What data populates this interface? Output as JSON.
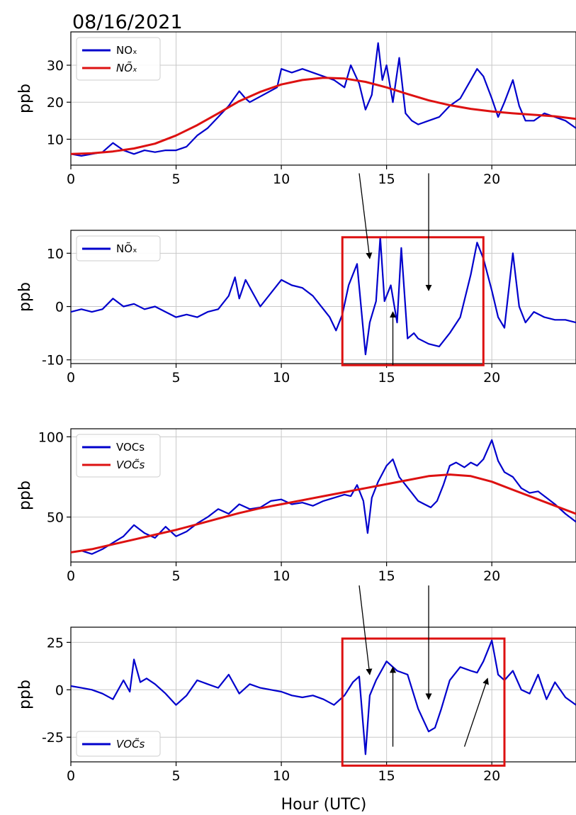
{
  "date_label": "08/16/2021",
  "xlabel": "Hour (UTC)",
  "colors": {
    "measured": "#0000cc",
    "smooth": "#dd1111",
    "box": "#dd1111",
    "arrow": "#000000"
  },
  "chart_data": [
    {
      "type": "line",
      "ylabel": "ppb",
      "xlim": [
        0,
        24
      ],
      "ylim": [
        3,
        39
      ],
      "xticks": [
        0,
        5,
        10,
        15,
        20
      ],
      "yticks": [
        10,
        20,
        30
      ],
      "legend": {
        "placement": "top-left",
        "entries": [
          "NOₓ",
          "NÕₓ"
        ]
      },
      "series": [
        {
          "name": "NOₓ",
          "style": "measured",
          "x": [
            0,
            0.5,
            1,
            1.5,
            2,
            2.5,
            3,
            3.5,
            4,
            4.5,
            5,
            5.5,
            6,
            6.5,
            7,
            7.5,
            8,
            8.3,
            8.5,
            9.8,
            10,
            10.5,
            11,
            11.5,
            12,
            12.5,
            13,
            13.3,
            13.7,
            14,
            14.3,
            14.6,
            14.8,
            15,
            15.3,
            15.6,
            15.9,
            16.2,
            16.5,
            17,
            17.5,
            18,
            18.5,
            19,
            19.3,
            19.6,
            20,
            20.3,
            20.6,
            21,
            21.3,
            21.6,
            22,
            22.5,
            23,
            23.5,
            24
          ],
          "y": [
            6,
            5.5,
            6,
            6.5,
            9,
            7,
            6,
            7,
            6.5,
            7,
            7,
            8,
            11,
            13,
            16,
            19,
            23,
            21,
            20,
            24,
            29,
            28,
            29,
            28,
            27,
            26,
            24,
            30,
            25,
            18,
            22,
            36,
            26,
            30,
            20,
            32,
            17,
            15,
            14,
            15,
            16,
            19,
            21,
            26,
            29,
            27,
            21,
            16,
            20,
            26,
            19,
            15,
            15,
            17,
            16,
            15,
            13
          ]
        },
        {
          "name": "NÕₓ",
          "style": "smooth",
          "x": [
            0,
            1,
            2,
            3,
            4,
            5,
            6,
            7,
            8,
            9,
            10,
            11,
            12,
            13,
            14,
            15,
            16,
            17,
            18,
            19,
            20,
            21,
            22,
            23,
            24
          ],
          "y": [
            6,
            6.2,
            6.7,
            7.5,
            8.8,
            11,
            13.8,
            17,
            20.3,
            22.8,
            24.8,
            26,
            26.6,
            26.4,
            25.5,
            24,
            22.2,
            20.5,
            19.2,
            18.2,
            17.5,
            17,
            16.6,
            16.2,
            15.5
          ]
        }
      ]
    },
    {
      "type": "line",
      "ylabel": "ppb",
      "xlim": [
        0,
        24
      ],
      "ylim": [
        -10.7,
        14.3
      ],
      "xticks": [
        0,
        5,
        10,
        15,
        20
      ],
      "yticks": [
        -10,
        0,
        10
      ],
      "legend": {
        "placement": "top-left",
        "entries": [
          "NÕₓ"
        ]
      },
      "series": [
        {
          "name": "NÕₓ",
          "style": "measured",
          "x": [
            0,
            0.5,
            1,
            1.5,
            2,
            2.5,
            3,
            3.5,
            4,
            4.5,
            5,
            5.5,
            6,
            6.5,
            7,
            7.5,
            7.8,
            8,
            8.3,
            9,
            10,
            10.5,
            11,
            11.5,
            12,
            12.3,
            12.6,
            12.9,
            13.2,
            13.6,
            14,
            14.2,
            14.5,
            14.7,
            14.9,
            15.2,
            15.5,
            15.7,
            16,
            16.3,
            16.5,
            17,
            17.5,
            18,
            18.5,
            19,
            19.3,
            19.6,
            20,
            20.3,
            20.6,
            21,
            21.3,
            21.6,
            22,
            22.5,
            23,
            23.5,
            24
          ],
          "y": [
            -1,
            -0.5,
            -1,
            -0.5,
            1.5,
            0,
            0.5,
            -0.5,
            0,
            -1,
            -2,
            -1.5,
            -2,
            -1,
            -0.5,
            2,
            5.5,
            1.5,
            5,
            0,
            5,
            4,
            3.5,
            2,
            -0.5,
            -2,
            -4.5,
            -1.5,
            4,
            8,
            -9,
            -3,
            1,
            13,
            1,
            4,
            -3,
            11,
            -6,
            -5,
            -6,
            -7,
            -7.5,
            -5,
            -2,
            6,
            12,
            9,
            3,
            -2,
            -4,
            10,
            0,
            -3,
            -1,
            -2,
            -2.5,
            -2.5,
            -3
          ]
        }
      ]
    },
    {
      "type": "line",
      "ylabel": "ppb",
      "xlim": [
        0,
        24
      ],
      "ylim": [
        22,
        105
      ],
      "xticks": [
        0,
        5,
        10,
        15,
        20
      ],
      "yticks": [
        50,
        100
      ],
      "legend": {
        "placement": "top-left",
        "entries": [
          "VOCs",
          "VOC̃s"
        ]
      },
      "series": [
        {
          "name": "VOCs",
          "style": "measured",
          "x": [
            0,
            0.5,
            1,
            1.5,
            2,
            2.5,
            3,
            3.5,
            4,
            4.5,
            5,
            5.5,
            6,
            6.5,
            7,
            7.5,
            8,
            8.5,
            9,
            9.5,
            10,
            10.5,
            11,
            11.5,
            12,
            12.5,
            13,
            13.3,
            13.6,
            13.9,
            14.1,
            14.3,
            14.6,
            15,
            15.3,
            15.6,
            15.9,
            16.2,
            16.5,
            16.8,
            17.1,
            17.4,
            17.7,
            18,
            18.3,
            18.7,
            19,
            19.3,
            19.6,
            20,
            20.3,
            20.6,
            21,
            21.4,
            21.8,
            22.2,
            22.6,
            23,
            23.5,
            24
          ],
          "y": [
            28,
            29,
            27,
            30,
            34,
            38,
            45,
            40,
            37,
            44,
            38,
            41,
            46,
            50,
            55,
            52,
            58,
            55,
            56,
            60,
            61,
            58,
            59,
            57,
            60,
            62,
            64,
            63,
            70,
            60,
            40,
            62,
            72,
            82,
            86,
            75,
            70,
            65,
            60,
            58,
            56,
            60,
            70,
            82,
            84,
            81,
            84,
            82,
            86,
            98,
            85,
            78,
            75,
            68,
            65,
            66,
            62,
            58,
            52,
            47
          ]
        },
        {
          "name": "VOC̃s",
          "style": "smooth",
          "x": [
            0,
            1,
            2,
            3,
            4,
            5,
            6,
            7,
            8,
            9,
            10,
            11,
            12,
            13,
            14,
            15,
            16,
            17,
            18,
            19,
            20,
            21,
            22,
            23,
            24
          ],
          "y": [
            28,
            30,
            33,
            36,
            39,
            42,
            45.5,
            49,
            52.5,
            55.5,
            58,
            60.5,
            63,
            65.5,
            68,
            70.5,
            73,
            75.5,
            76.5,
            75.5,
            72,
            67,
            62,
            57,
            52
          ]
        }
      ]
    },
    {
      "type": "line",
      "ylabel": "ppb",
      "xlim": [
        0,
        24
      ],
      "ylim": [
        -38,
        33
      ],
      "xticks": [
        0,
        5,
        10,
        15,
        20
      ],
      "yticks": [
        -25,
        0,
        25
      ],
      "legend": {
        "placement": "bottom-left",
        "entries": [
          "VOC̃s"
        ]
      },
      "series": [
        {
          "name": "VOC̃s",
          "style": "measured",
          "x": [
            0,
            0.5,
            1,
            1.5,
            2,
            2.5,
            2.8,
            3,
            3.3,
            3.6,
            4,
            4.5,
            5,
            5.5,
            6,
            6.5,
            7,
            7.5,
            8,
            8.5,
            9,
            9.5,
            10,
            10.5,
            11,
            11.5,
            12,
            12.5,
            13,
            13.4,
            13.7,
            14,
            14.2,
            14.5,
            15,
            15.5,
            16,
            16.5,
            17,
            17.3,
            17.6,
            18,
            18.5,
            19,
            19.3,
            19.6,
            20,
            20.3,
            20.6,
            21,
            21.4,
            21.8,
            22.2,
            22.6,
            23,
            23.5,
            24
          ],
          "y": [
            2,
            1,
            0,
            -2,
            -5,
            5,
            -1,
            16,
            4,
            6,
            3,
            -2,
            -8,
            -3,
            5,
            3,
            1,
            8,
            -2,
            3,
            1,
            0,
            -1,
            -3,
            -4,
            -3,
            -5,
            -8,
            -3,
            4,
            7,
            -34,
            -3,
            5,
            15,
            10,
            8,
            -10,
            -22,
            -20,
            -10,
            5,
            12,
            10,
            9,
            15,
            26,
            8,
            5,
            10,
            0,
            -2,
            8,
            -5,
            4,
            -4,
            -8
          ]
        }
      ]
    }
  ],
  "highlight_boxes": [
    {
      "panel": 1,
      "x0": 12.9,
      "x1": 19.6,
      "y0": 13,
      "y1": -11
    },
    {
      "panel": 3,
      "x0": 12.9,
      "x1": 20.6,
      "y0": 27,
      "y1": -40
    }
  ],
  "arrows": [
    {
      "panel": 1,
      "x1": 13.7,
      "y1": 25,
      "x2": 14.2,
      "y2": 9
    },
    {
      "panel": 1,
      "x1": 17.0,
      "y1": 25,
      "x2": 17.0,
      "y2": 3
    },
    {
      "panel": 1,
      "x1": 15.3,
      "y1": -11,
      "x2": 15.3,
      "y2": -1
    },
    {
      "panel": 3,
      "x1": 13.7,
      "y1": 55,
      "x2": 14.2,
      "y2": 8
    },
    {
      "panel": 3,
      "x1": 17.0,
      "y1": 55,
      "x2": 17.0,
      "y2": -5
    },
    {
      "panel": 3,
      "x1": 15.3,
      "y1": -30,
      "x2": 15.3,
      "y2": 12
    },
    {
      "panel": 3,
      "x1": 18.7,
      "y1": -30,
      "x2": 19.8,
      "y2": 6
    }
  ]
}
